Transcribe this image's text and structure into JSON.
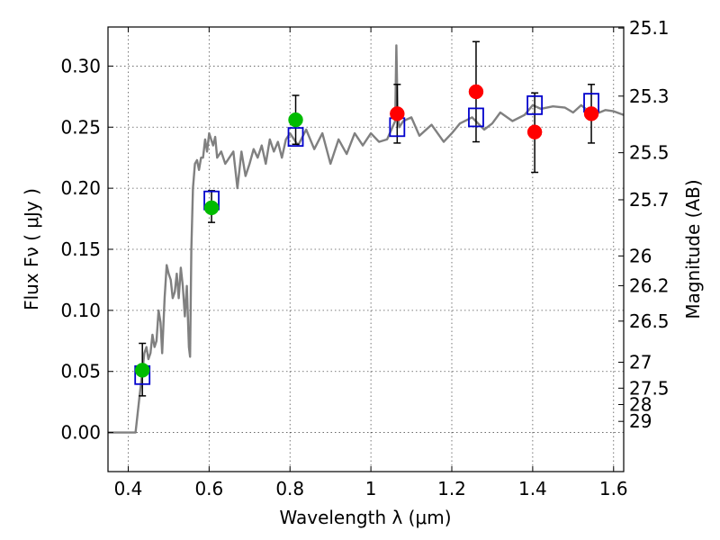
{
  "chart_data": {
    "type": "scatter",
    "xlabel": "Wavelength  λ (μm)",
    "ylabel": "Flux  Fν  ( μJy )",
    "ylabel_right": "Magnitude (AB)",
    "xlim": [
      0.35,
      1.625
    ],
    "ylim": [
      -0.032,
      0.332
    ],
    "grid": true,
    "x_ticks": [
      0.4,
      0.6,
      0.8,
      1.0,
      1.2,
      1.4,
      1.6
    ],
    "x_tick_labels": [
      "0.4",
      "0.6",
      "0.8",
      "1",
      "1.2",
      "1.4",
      "1.6"
    ],
    "y_ticks": [
      0.0,
      0.05,
      0.1,
      0.15,
      0.2,
      0.25,
      0.3
    ],
    "y_tick_labels": [
      "0.00",
      "0.05",
      "0.10",
      "0.15",
      "0.20",
      "0.25",
      "0.30"
    ],
    "mag_ticks": [
      25.1,
      25.3,
      25.5,
      25.7,
      26,
      26.2,
      26.5,
      27,
      27.5,
      28,
      29
    ],
    "mag_tick_labels": [
      "25.1",
      "25.3",
      "25.5",
      "25.7",
      "26",
      "26.2",
      "26.5",
      "27",
      "27.5",
      "28",
      "29"
    ],
    "series": [
      {
        "type": "line",
        "color": "#808080",
        "x": [
          0.35,
          0.4,
          0.418,
          0.428,
          0.435,
          0.44,
          0.445,
          0.45,
          0.455,
          0.46,
          0.465,
          0.47,
          0.475,
          0.48,
          0.484,
          0.49,
          0.495,
          0.5,
          0.505,
          0.51,
          0.515,
          0.52,
          0.525,
          0.53,
          0.535,
          0.54,
          0.545,
          0.55,
          0.553,
          0.556,
          0.56,
          0.565,
          0.57,
          0.575,
          0.58,
          0.585,
          0.59,
          0.595,
          0.6,
          0.605,
          0.61,
          0.615,
          0.62,
          0.63,
          0.64,
          0.65,
          0.66,
          0.67,
          0.68,
          0.69,
          0.7,
          0.71,
          0.72,
          0.73,
          0.74,
          0.75,
          0.76,
          0.77,
          0.78,
          0.79,
          0.8,
          0.82,
          0.84,
          0.86,
          0.88,
          0.9,
          0.92,
          0.94,
          0.96,
          0.98,
          1.0,
          1.02,
          1.04,
          1.06,
          1.063,
          1.066,
          1.07,
          1.08,
          1.1,
          1.12,
          1.15,
          1.18,
          1.2,
          1.22,
          1.25,
          1.28,
          1.3,
          1.32,
          1.35,
          1.38,
          1.4,
          1.42,
          1.45,
          1.48,
          1.5,
          1.52,
          1.55,
          1.58,
          1.6,
          1.625
        ],
        "y": [
          0.0,
          0.0,
          0.0,
          0.03,
          0.05,
          0.065,
          0.07,
          0.06,
          0.065,
          0.08,
          0.07,
          0.075,
          0.1,
          0.09,
          0.065,
          0.11,
          0.137,
          0.13,
          0.125,
          0.11,
          0.115,
          0.13,
          0.11,
          0.135,
          0.12,
          0.095,
          0.12,
          0.07,
          0.062,
          0.15,
          0.2,
          0.22,
          0.223,
          0.215,
          0.225,
          0.225,
          0.24,
          0.23,
          0.245,
          0.24,
          0.235,
          0.242,
          0.225,
          0.23,
          0.22,
          0.225,
          0.23,
          0.2,
          0.23,
          0.21,
          0.22,
          0.232,
          0.225,
          0.235,
          0.22,
          0.24,
          0.23,
          0.238,
          0.225,
          0.24,
          0.245,
          0.235,
          0.248,
          0.232,
          0.245,
          0.22,
          0.24,
          0.228,
          0.245,
          0.235,
          0.245,
          0.238,
          0.24,
          0.255,
          0.317,
          0.26,
          0.25,
          0.255,
          0.258,
          0.243,
          0.252,
          0.238,
          0.245,
          0.253,
          0.258,
          0.248,
          0.253,
          0.262,
          0.255,
          0.26,
          0.268,
          0.265,
          0.267,
          0.266,
          0.262,
          0.268,
          0.26,
          0.264,
          0.263,
          0.26
        ]
      },
      {
        "name": "",
        "type": "markers",
        "marker": "square",
        "color": "#0000cc",
        "x": [
          0.435,
          0.606,
          0.814,
          1.065,
          1.26,
          1.405,
          1.545
        ],
        "y": [
          0.047,
          0.19,
          0.242,
          0.25,
          0.258,
          0.268,
          0.27
        ]
      },
      {
        "name": "",
        "type": "markers",
        "marker": "circle",
        "color": "#00bb00",
        "x": [
          0.435,
          0.606,
          0.814
        ],
        "y": [
          0.051,
          0.184,
          0.256
        ],
        "yerr_low": [
          0.03,
          0.172,
          0.236
        ],
        "yerr_high": [
          0.073,
          0.198,
          0.276
        ]
      },
      {
        "name": "",
        "type": "markers",
        "marker": "circle",
        "color": "#ff0000",
        "x": [
          1.065,
          1.26,
          1.405,
          1.545
        ],
        "y": [
          0.261,
          0.279,
          0.246,
          0.261
        ],
        "yerr_low": [
          0.237,
          0.238,
          0.213,
          0.237
        ],
        "yerr_high": [
          0.285,
          0.32,
          0.278,
          0.285
        ]
      }
    ]
  }
}
